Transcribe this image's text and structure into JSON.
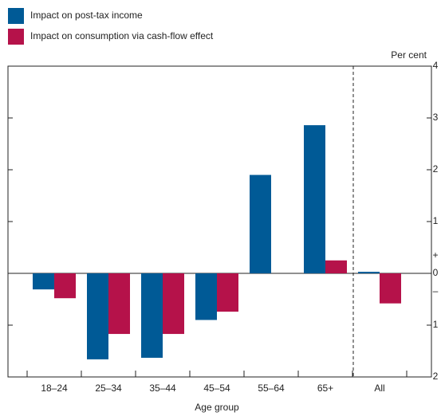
{
  "chart_data": {
    "type": "bar",
    "categories": [
      "18–24",
      "25–34",
      "35–44",
      "45–54",
      "55–64",
      "65+",
      "All"
    ],
    "series": [
      {
        "name": "Impact on post-tax income",
        "color": "#005a96",
        "values": [
          -0.31,
          -1.66,
          -1.63,
          -0.9,
          1.9,
          2.86,
          0.03
        ]
      },
      {
        "name": "Impact on consumption via cash-flow effect",
        "color": "#b5124a",
        "values": [
          -0.48,
          -1.17,
          -1.17,
          -0.74,
          0,
          0.25,
          -0.58
        ]
      }
    ],
    "ylim": [
      -2,
      4
    ],
    "yticks": [
      {
        "value": -2,
        "label": "2"
      },
      {
        "value": -1,
        "label": "1"
      },
      0,
      1,
      2,
      3,
      4
    ],
    "y_unit_label": "Per cent",
    "positive_sign": "+",
    "negative_sign": "–",
    "xlabel": "Age group"
  }
}
